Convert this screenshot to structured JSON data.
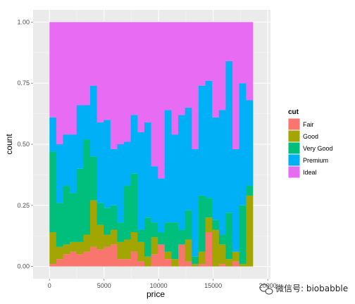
{
  "chart_data": {
    "type": "bar",
    "subtype": "stacked-fill-histogram",
    "xlabel": "price",
    "ylabel": "count",
    "xlim": [
      -1500,
      20250
    ],
    "ylim": [
      -0.05,
      1.05
    ],
    "x_ticks": [
      0,
      5000,
      10000,
      15000,
      20000
    ],
    "x_tick_labels": [
      "0",
      "5000",
      "10000",
      "15000",
      "20000"
    ],
    "y_ticks": [
      0.0,
      0.25,
      0.5,
      0.75,
      1.0
    ],
    "y_tick_labels": [
      "0.00",
      "0.25",
      "0.50",
      "0.75",
      "1.00"
    ],
    "bin_width": 621.07,
    "bin_starts": [
      0,
      621.07,
      1242.14,
      1863.21,
      2484.28,
      3105.35,
      3726.42,
      4347.49,
      4968.56,
      5589.63,
      6210.7,
      6831.77,
      7452.84,
      8073.91,
      8694.98,
      9316.05,
      9937.12,
      10558.19,
      11179.26,
      11800.33,
      12421.4,
      13042.47,
      13663.54,
      14284.61,
      14905.68,
      15526.75,
      16147.82,
      16768.89,
      17389.96,
      18011.03
    ],
    "series": [
      {
        "name": "Fair",
        "color": "#F8766D",
        "values": [
          0.01,
          0.03,
          0.05,
          0.06,
          0.05,
          0.06,
          0.08,
          0.07,
          0.08,
          0.09,
          0.03,
          0.03,
          0.06,
          0.02,
          0.0,
          0.05,
          0.09,
          0.03,
          0.0,
          0.09,
          0.02,
          0.0,
          0.01,
          0.14,
          0.0,
          0.01,
          0.0,
          0.02,
          0.0,
          0.0
        ]
      },
      {
        "name": "Good",
        "color": "#A3A500",
        "values": [
          0.13,
          0.05,
          0.04,
          0.04,
          0.05,
          0.07,
          0.19,
          0.1,
          0.05,
          0.06,
          0.07,
          0.08,
          0.08,
          0.08,
          0.04,
          0.07,
          0.0,
          0.03,
          0.03,
          0.0,
          0.09,
          0.01,
          0.05,
          0.06,
          0.15,
          0.08,
          0.03,
          0.04,
          0.01,
          0.29
        ]
      },
      {
        "name": "Very Good",
        "color": "#00BF7D",
        "values": [
          0.33,
          0.18,
          0.24,
          0.2,
          0.3,
          0.39,
          0.18,
          0.09,
          0.11,
          0.1,
          0.08,
          0.22,
          0.24,
          0.05,
          0.16,
          0.06,
          0.05,
          0.12,
          0.15,
          0.06,
          0.12,
          0.03,
          0.23,
          0.08,
          0.04,
          0.04,
          0.19,
          0.0,
          0.24,
          0.04
        ]
      },
      {
        "name": "Premium",
        "color": "#00B0F6",
        "values": [
          0.14,
          0.24,
          0.21,
          0.24,
          0.26,
          0.14,
          0.29,
          0.33,
          0.36,
          0.23,
          0.32,
          0.18,
          0.24,
          0.4,
          0.39,
          0.23,
          0.22,
          0.46,
          0.36,
          0.47,
          0.42,
          0.44,
          0.45,
          0.48,
          0.42,
          0.51,
          0.62,
          0.42,
          0.5,
          0.35
        ]
      },
      {
        "name": "Ideal",
        "color": "#E76BF3",
        "values": [
          0.39,
          0.5,
          0.46,
          0.46,
          0.34,
          0.34,
          0.26,
          0.41,
          0.4,
          0.52,
          0.5,
          0.49,
          0.38,
          0.45,
          0.41,
          0.59,
          0.64,
          0.36,
          0.46,
          0.38,
          0.35,
          0.52,
          0.26,
          0.24,
          0.39,
          0.36,
          0.16,
          0.52,
          0.25,
          0.32
        ]
      }
    ],
    "legend": {
      "title": "cut",
      "position": "right"
    },
    "grid": true,
    "background": "#EBEBEB"
  },
  "watermark": {
    "text": "微信号: biobabble"
  }
}
